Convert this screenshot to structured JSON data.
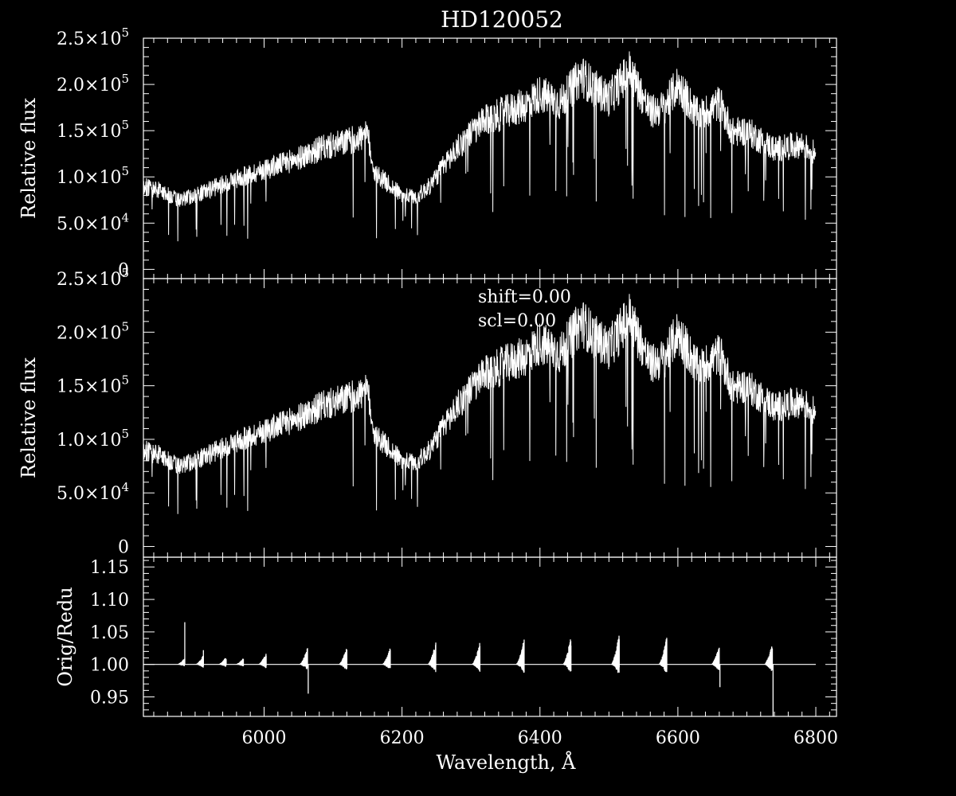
{
  "title": "HD120052",
  "chart_data": [
    {
      "type": "line",
      "panel": "top",
      "title": "HD120052",
      "xlabel": "",
      "ylabel": "Relative flux",
      "xlim": [
        5825,
        6830
      ],
      "ylim": [
        -10000,
        250000
      ],
      "x_ticks": [
        6000,
        6200,
        6400,
        6600,
        6800
      ],
      "y_ticks": [
        0,
        50000,
        100000,
        150000,
        200000,
        250000
      ],
      "y_tick_labels": [
        {
          "mant": "0",
          "exp": ""
        },
        {
          "mant": "5.0×10",
          "exp": "4"
        },
        {
          "mant": "1.0×10",
          "exp": "5"
        },
        {
          "mant": "1.5×10",
          "exp": "5"
        },
        {
          "mant": "2.0×10",
          "exp": "5"
        },
        {
          "mant": "2.5×10",
          "exp": "5"
        }
      ],
      "series": [
        {
          "x": [
            5825,
            5850,
            5875,
            5890,
            5900,
            5950,
            6000,
            6050,
            6080,
            6120,
            6150,
            6160,
            6200,
            6220,
            6240,
            6260,
            6290,
            6320,
            6350,
            6380,
            6400,
            6430,
            6460,
            6480,
            6500,
            6530,
            6560,
            6580,
            6600,
            6630,
            6660,
            6680,
            6700,
            6740,
            6780,
            6800
          ],
          "y": [
            90000,
            85000,
            75000,
            78000,
            80000,
            95000,
            108000,
            120000,
            130000,
            138000,
            145000,
            105000,
            80000,
            78000,
            90000,
            112000,
            140000,
            160000,
            170000,
            178000,
            190000,
            180000,
            210000,
            195000,
            185000,
            215000,
            170000,
            175000,
            200000,
            165000,
            180000,
            148000,
            150000,
            130000,
            135000,
            125000
          ]
        }
      ]
    },
    {
      "type": "line",
      "panel": "middle",
      "xlabel": "",
      "ylabel": "Relative flux",
      "xlim": [
        5825,
        6830
      ],
      "ylim": [
        -10000,
        250000
      ],
      "x_ticks": [
        6000,
        6200,
        6400,
        6600,
        6800
      ],
      "y_ticks": [
        0,
        50000,
        100000,
        150000,
        200000,
        250000
      ],
      "y_tick_labels": [
        {
          "mant": "0",
          "exp": ""
        },
        {
          "mant": "5.0×10",
          "exp": "4"
        },
        {
          "mant": "1.0×10",
          "exp": "5"
        },
        {
          "mant": "1.5×10",
          "exp": "5"
        },
        {
          "mant": "2.0×10",
          "exp": "5"
        },
        {
          "mant": "2.5×10",
          "exp": "5"
        }
      ],
      "annotations": [
        "shift=0.00",
        "scl=0.00"
      ],
      "series": [
        {
          "x": [
            5825,
            5850,
            5875,
            5890,
            5900,
            5950,
            6000,
            6050,
            6080,
            6120,
            6150,
            6160,
            6200,
            6220,
            6240,
            6260,
            6290,
            6320,
            6350,
            6380,
            6400,
            6430,
            6460,
            6480,
            6500,
            6530,
            6560,
            6580,
            6600,
            6630,
            6660,
            6680,
            6700,
            6740,
            6780,
            6800
          ],
          "y": [
            90000,
            85000,
            75000,
            78000,
            80000,
            95000,
            108000,
            120000,
            130000,
            138000,
            145000,
            105000,
            80000,
            78000,
            90000,
            112000,
            140000,
            160000,
            170000,
            178000,
            190000,
            180000,
            210000,
            195000,
            185000,
            215000,
            170000,
            175000,
            200000,
            165000,
            180000,
            148000,
            150000,
            130000,
            135000,
            125000
          ]
        }
      ]
    },
    {
      "type": "line",
      "panel": "bottom",
      "xlabel": "Wavelength, Å",
      "ylabel": "Orig/Redu",
      "xlim": [
        5825,
        6830
      ],
      "ylim": [
        0.92,
        1.165
      ],
      "x_ticks": [
        6000,
        6200,
        6400,
        6600,
        6800
      ],
      "x_tick_labels": [
        "6000",
        "6200",
        "6400",
        "6600",
        "6800"
      ],
      "y_ticks": [
        0.95,
        1.0,
        1.05,
        1.1,
        1.15
      ],
      "y_tick_labels": [
        "0.95",
        "1.00",
        "1.05",
        "1.10",
        "1.15"
      ],
      "baseline": 1.0,
      "order_edges": [
        {
          "x": 5885,
          "height": 0.01,
          "spike": 1.065
        },
        {
          "x": 5912,
          "height": 0.015,
          "spike": 1.022
        },
        {
          "x": 5945,
          "height": 0.012
        },
        {
          "x": 5970,
          "height": 0.01
        },
        {
          "x": 6003,
          "height": 0.018
        },
        {
          "x": 6063,
          "height": 0.027,
          "dip": 0.955
        },
        {
          "x": 6120,
          "height": 0.028
        },
        {
          "x": 6183,
          "height": 0.028
        },
        {
          "x": 6249,
          "height": 0.035
        },
        {
          "x": 6313,
          "height": 0.035
        },
        {
          "x": 6377,
          "height": 0.04
        },
        {
          "x": 6445,
          "height": 0.045
        },
        {
          "x": 6515,
          "height": 0.05
        },
        {
          "x": 6584,
          "height": 0.045
        },
        {
          "x": 6660,
          "height": 0.03,
          "dip": 0.965
        },
        {
          "x": 6737,
          "height": 0.035,
          "dip": 0.915
        }
      ]
    }
  ]
}
